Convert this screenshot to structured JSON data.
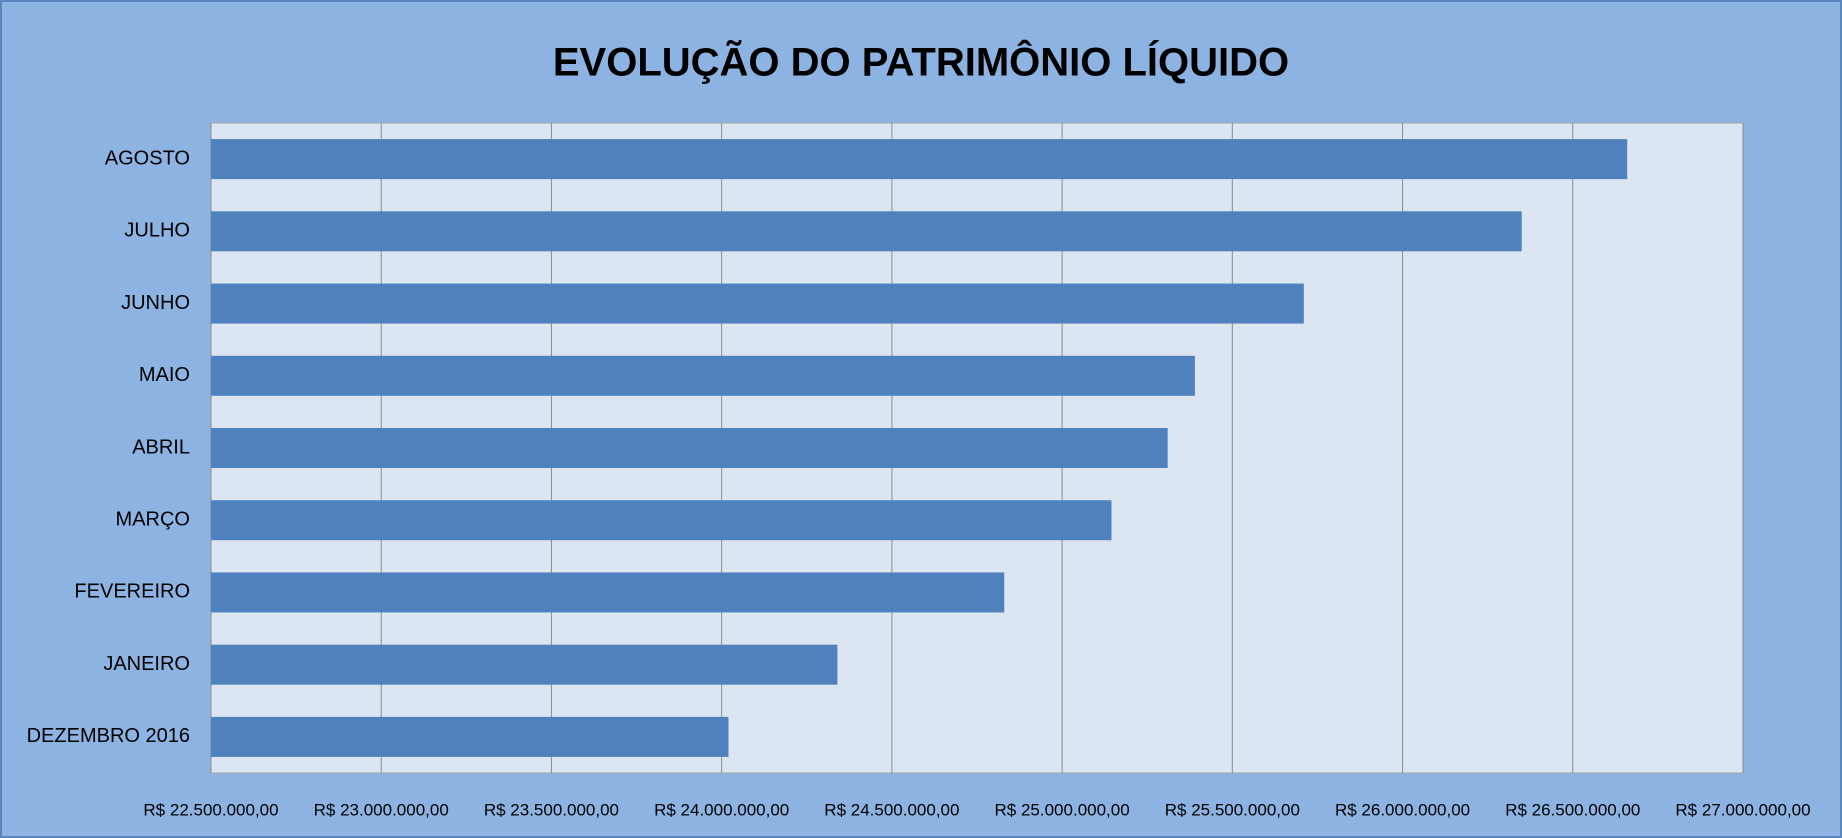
{
  "chart_data": {
    "type": "bar",
    "orientation": "horizontal",
    "title": "EVOLUÇÃO DO PATRIMÔNIO LÍQUIDO",
    "categories": [
      "DEZEMBRO 2016",
      "JANEIRO",
      "FEVEREIRO",
      "MARÇO",
      "ABRIL",
      "MAIO",
      "JUNHO",
      "JULHO",
      "AGOSTO"
    ],
    "values": [
      24020000,
      24340000,
      24830000,
      25145000,
      25310000,
      25390000,
      25710000,
      26350000,
      26660000
    ],
    "color": "#4f81bd",
    "xlim": [
      22500000,
      27000000
    ],
    "xticks": [
      {
        "value": 22500000,
        "label": "R$ 22.500.000,00"
      },
      {
        "value": 23000000,
        "label": "R$ 23.000.000,00"
      },
      {
        "value": 23500000,
        "label": "R$ 23.500.000,00"
      },
      {
        "value": 24000000,
        "label": "R$ 24.000.000,00"
      },
      {
        "value": 24500000,
        "label": "R$ 24.500.000,00"
      },
      {
        "value": 25000000,
        "label": "R$ 25.000.000,00"
      },
      {
        "value": 25500000,
        "label": "R$ 25.500.000,00"
      },
      {
        "value": 26000000,
        "label": "R$ 26.000.000,00"
      },
      {
        "value": 26500000,
        "label": "R$ 26.500.000,00"
      },
      {
        "value": 27000000,
        "label": "R$ 27.000.000,00"
      }
    ],
    "grid": true
  }
}
